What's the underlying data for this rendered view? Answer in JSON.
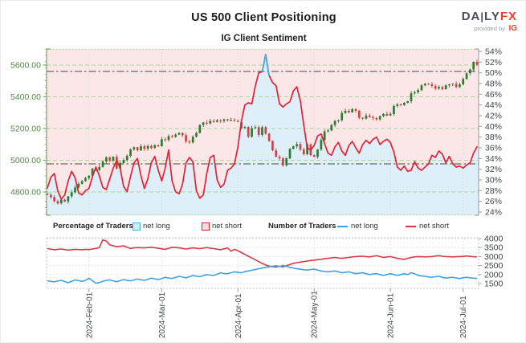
{
  "header": {
    "title": "US 500 Client Positioning",
    "subtitle": "IG Client Sentiment",
    "logo": {
      "part1": "DA",
      "bar": "|",
      "part2": "LY",
      "fx": "FX",
      "provided_by": "provided by",
      "ig": "IG"
    }
  },
  "legend": {
    "pct_header": "Percentage of Traders",
    "pct_long_label": "net long",
    "pct_short_label": "net short",
    "num_header": "Number of Traders",
    "num_long_label": "net long",
    "num_short_label": "net short"
  },
  "colors": {
    "short_area": "#fbe7e7",
    "long_area": "#dfeffa",
    "sentiment_red": "#e02335",
    "sentiment_blue": "#45b0e5",
    "candle_up": "#2d7b2d",
    "candle_down": "#c94444",
    "price_axis_text": "#4b8c3c",
    "grid_green": "#a6cc96",
    "grid_gray": "#d9d9d9",
    "axis_text": "#3f464e",
    "ref_line": "#686868",
    "spine_green": "#7fa06a",
    "spine_gray": "#999999",
    "panel_border": "#c4c4c4",
    "traders_red": "#d63a4a",
    "traders_blue": "#3fa3e0"
  },
  "chart_data": [
    {
      "panel": "main",
      "type": "candlestick+line",
      "description": "US 500 daily price candles (left axis) with IG client sentiment net-long percentage line (right axis); line drawn blue when net-long majority (>50%), red otherwise; area below line shaded blue, above shaded pink",
      "price_axis_ticks": [
        "5600.00",
        "5400.00",
        "5200.00",
        "5000.00",
        "4800.00"
      ],
      "pct_axis_ticks": [
        "54%",
        "52%",
        "50%",
        "48%",
        "46%",
        "44%",
        "42%",
        "40%",
        "38%",
        "36%",
        "34%",
        "32%",
        "30%",
        "28%",
        "26%",
        "24%"
      ],
      "pct_axis_range": [
        24,
        54
      ],
      "ref_price_line": 5560,
      "ref_pct_line": 33.0,
      "long_majority_threshold": 50.3,
      "price_close": [
        4782,
        4768,
        4742,
        4728,
        4752,
        4740,
        4772,
        4798,
        4828,
        4852,
        4868,
        4888,
        4902,
        4948,
        4938,
        4958,
        4992,
        5018,
        4998,
        5022,
        4948,
        4982,
        5002,
        5028,
        5068,
        5082,
        5062,
        5088,
        5072,
        5090,
        5078,
        5095,
        5088,
        5132,
        5128,
        5152,
        5148,
        5162,
        5172,
        5158,
        5118,
        5112,
        5148,
        5172,
        5222,
        5238,
        5232,
        5248,
        5242,
        5252,
        5248,
        5258,
        5252,
        5254,
        5248,
        5242,
        5205,
        5210,
        5148,
        5202,
        5208,
        5160,
        5208,
        5168,
        5122,
        5062,
        5022,
        5012,
        4968,
        5012,
        5072,
        5088,
        5102,
        5068,
        5038,
        5100,
        5032,
        5022,
        5068,
        5128,
        5182,
        5188,
        5222,
        5248,
        5252,
        5298,
        5312,
        5302,
        5322,
        5312,
        5268,
        5262,
        5282,
        5272,
        5266,
        5258,
        5278,
        5292,
        5282,
        5292,
        5342,
        5352,
        5348,
        5362,
        5372,
        5422,
        5428,
        5442,
        5472,
        5482,
        5478,
        5468,
        5452,
        5462,
        5448,
        5472,
        5478,
        5482,
        5462,
        5478,
        5512,
        5548,
        5572,
        5620,
        5602
      ],
      "net_long_pct": [
        28.5,
        30.5,
        31.2,
        28.0,
        26.4,
        27.2,
        29.8,
        31.6,
        30.4,
        27.6,
        27.2,
        28.0,
        28.4,
        30.6,
        32.4,
        30.8,
        28.6,
        28.2,
        30.2,
        32.2,
        33.6,
        32.2,
        28.8,
        27.8,
        30.6,
        33.2,
        34.0,
        30.8,
        28.4,
        30.2,
        33.2,
        34.4,
        31.8,
        29.8,
        32.2,
        35.6,
        29.8,
        27.8,
        27.4,
        29.2,
        33.2,
        34.2,
        33.4,
        28.0,
        26.6,
        27.2,
        31.2,
        34.2,
        34.6,
        30.0,
        28.6,
        29.2,
        31.8,
        32.2,
        33.0,
        36.2,
        41.0,
        44.0,
        44.4,
        44.2,
        47.5,
        50.0,
        50.2,
        53.4,
        49.5,
        48.2,
        47.6,
        44.2,
        43.6,
        44.2,
        44.6,
        46.6,
        47.4,
        44.8,
        40.2,
        36.0,
        35.6,
        36.4,
        38.2,
        38.6,
        36.8,
        35.0,
        34.6,
        36.2,
        37.0,
        35.4,
        34.6,
        36.4,
        37.2,
        36.0,
        35.0,
        36.6,
        37.4,
        36.8,
        37.6,
        38.0,
        36.6,
        37.2,
        37.6,
        37.0,
        35.2,
        32.4,
        31.8,
        32.6,
        31.6,
        31.8,
        33.4,
        32.2,
        31.8,
        32.4,
        33.0,
        34.6,
        34.2,
        35.4,
        34.8,
        33.2,
        34.4,
        33.0,
        32.4,
        32.6,
        32.2,
        32.8,
        33.2,
        35.0,
        36.2
      ]
    },
    {
      "panel": "bottom",
      "type": "line",
      "description": "Number of traders net-long (blue) and net-short (red)",
      "count_axis_ticks": [
        "4000",
        "3500",
        "3000",
        "2500",
        "2000",
        "1500"
      ],
      "net_short_count": [
        3440,
        3410,
        3380,
        3400,
        3420,
        3390,
        3360,
        3380,
        3400,
        3390,
        3380,
        3400,
        3390,
        3420,
        3450,
        3500,
        3930,
        3860,
        3650,
        3600,
        3550,
        3570,
        3600,
        3520,
        3450,
        3480,
        3500,
        3490,
        3480,
        3500,
        3520,
        3490,
        3460,
        3430,
        3400,
        3460,
        3520,
        3500,
        3480,
        3450,
        3420,
        3450,
        3480,
        3460,
        3440,
        3470,
        3500,
        3470,
        3440,
        3410,
        3380,
        3430,
        3480,
        3300,
        3400,
        3320,
        3220,
        3120,
        3020,
        2920,
        2820,
        2720,
        2620,
        2530,
        2470,
        2440,
        2420,
        2460,
        2430,
        2490,
        2560,
        2620,
        2660,
        2690,
        2720,
        2750,
        2780,
        2800,
        2830,
        2850,
        2880,
        2900,
        2930,
        2950,
        2920,
        2900,
        2930,
        2950,
        2980,
        3000,
        3010,
        3020,
        3000,
        2980,
        3020,
        3050,
        3000,
        2950,
        2980,
        3000,
        2950,
        2900,
        2870,
        2850,
        2900,
        2950,
        2980,
        3000,
        2990,
        2980,
        2990,
        3000,
        3030,
        3050,
        3020,
        3000,
        2990,
        2980,
        2990,
        3000,
        3010,
        3030,
        3010,
        2990,
        2980
      ],
      "net_long_count": [
        1650,
        1620,
        1600,
        1640,
        1680,
        1610,
        1550,
        1620,
        1700,
        1660,
        1620,
        1680,
        1800,
        1650,
        1520,
        1560,
        1620,
        1680,
        1700,
        1650,
        1600,
        1660,
        1720,
        1680,
        1650,
        1700,
        1750,
        1710,
        1680,
        1740,
        1800,
        1760,
        1720,
        1780,
        1850,
        1810,
        1780,
        1840,
        1900,
        1860,
        1820,
        1880,
        1950,
        1910,
        1880,
        1940,
        2000,
        1970,
        1950,
        2020,
        2100,
        2060,
        2050,
        2100,
        2150,
        2120,
        2100,
        2160,
        2200,
        2240,
        2280,
        2320,
        2360,
        2400,
        2430,
        2460,
        2490,
        2440,
        2510,
        2460,
        2400,
        2360,
        2320,
        2300,
        2270,
        2250,
        2280,
        2300,
        2250,
        2200,
        2170,
        2150,
        2180,
        2200,
        2150,
        2100,
        2130,
        2150,
        2100,
        2050,
        2080,
        2100,
        2050,
        2000,
        2030,
        2050,
        2000,
        1950,
        2000,
        2050,
        2000,
        1950,
        2000,
        2050,
        2000,
        2100,
        2050,
        1950,
        1920,
        1900,
        1870,
        1850,
        1880,
        1900,
        1850,
        1800,
        1830,
        1850,
        1810,
        1780,
        1820,
        1850,
        1820,
        1800,
        1780
      ]
    },
    {
      "panel": "x_axis",
      "month_labels": [
        "2024-Feb-01",
        "2024-Mar-01",
        "2024-Apr-01",
        "2024-May-01",
        "2024-Jun-01",
        "2024-Jul-01"
      ],
      "month_day_index": [
        12,
        33,
        55,
        77,
        99,
        120
      ],
      "days": 125
    }
  ]
}
